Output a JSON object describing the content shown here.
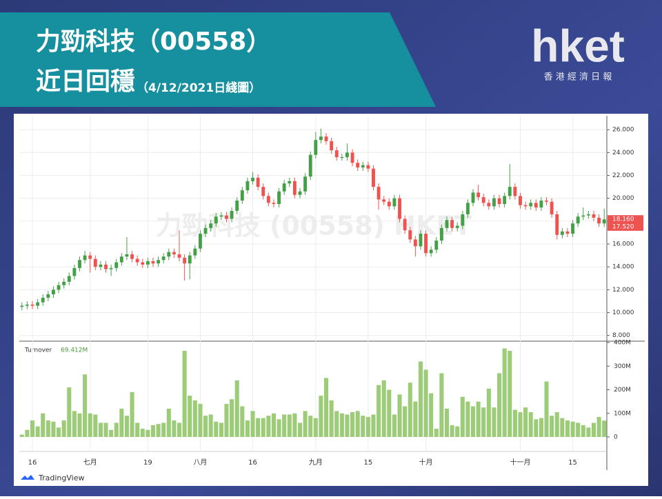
{
  "header": {
    "title_line1": "力勁科技（00558）",
    "title_line2": "近日回穩",
    "date_note": "（4/12/2021日綫圖）",
    "logo": "hket",
    "logo_sub": "香 港 經 濟 日 報"
  },
  "chart_data": {
    "type": "candlestick",
    "watermark": "力勁科技 (00558) HKET",
    "attribution": "TradingView",
    "up_color": "#43a047",
    "down_color": "#ef5350",
    "categories": [
      null,
      null,
      "16",
      null,
      null,
      null,
      null,
      null,
      null,
      null,
      null,
      null,
      null,
      "七月",
      null,
      null,
      null,
      null,
      null,
      null,
      null,
      null,
      null,
      null,
      "19",
      null,
      null,
      null,
      null,
      null,
      null,
      null,
      null,
      null,
      "八月",
      null,
      null,
      null,
      null,
      null,
      null,
      null,
      null,
      null,
      "16",
      null,
      null,
      null,
      null,
      null,
      null,
      null,
      null,
      null,
      null,
      null,
      "九月",
      null,
      null,
      null,
      null,
      null,
      null,
      null,
      null,
      null,
      "15",
      null,
      null,
      null,
      null,
      null,
      null,
      null,
      null,
      null,
      null,
      "十月",
      null,
      null,
      null,
      null,
      null,
      null,
      null,
      null,
      null,
      null,
      null,
      null,
      null,
      null,
      null,
      null,
      null,
      "十一月",
      null,
      null,
      null,
      null,
      null,
      null,
      null,
      null,
      null,
      "15",
      null,
      null,
      null,
      null,
      null,
      null
    ],
    "open": [
      10.5,
      10.6,
      10.7,
      10.6,
      10.9,
      11.3,
      11.6,
      12.0,
      12.4,
      12.7,
      13.2,
      13.9,
      14.6,
      15.0,
      14.7,
      14.0,
      14.2,
      13.8,
      13.9,
      14.4,
      14.9,
      15.1,
      14.7,
      14.4,
      14.2,
      14.5,
      14.3,
      14.6,
      14.9,
      15.3,
      15.1,
      14.8,
      14.3,
      15.0,
      15.6,
      16.9,
      17.4,
      17.8,
      18.4,
      18.5,
      18.2,
      18.9,
      19.8,
      20.7,
      21.5,
      21.8,
      21.0,
      20.2,
      19.6,
      19.5,
      20.6,
      21.3,
      21.5,
      20.3,
      20.6,
      21.9,
      23.8,
      25.1,
      25.4,
      25.0,
      24.2,
      23.6,
      23.6,
      24.0,
      23.1,
      22.7,
      22.9,
      22.6,
      21.0,
      19.9,
      19.7,
      19.3,
      20.0,
      18.2,
      17.2,
      16.4,
      15.8,
      16.9,
      15.2,
      15.5,
      16.3,
      17.4,
      18.1,
      17.4,
      17.6,
      18.6,
      19.6,
      20.5,
      20.1,
      19.6,
      19.3,
      20.0,
      19.5,
      20.2,
      21.0,
      20.2,
      19.4,
      19.3,
      19.6,
      19.2,
      19.8,
      19.7,
      18.6,
      16.8,
      17.1,
      16.9,
      17.8,
      18.4,
      18.5,
      18.6,
      18.3,
      17.8
    ],
    "high": [
      10.9,
      11.0,
      11.0,
      11.2,
      11.6,
      11.9,
      12.3,
      12.7,
      13.0,
      13.5,
      14.2,
      14.9,
      15.4,
      15.3,
      15.0,
      14.5,
      14.5,
      14.2,
      14.7,
      15.2,
      16.6,
      15.4,
      15.0,
      14.7,
      14.8,
      14.8,
      14.9,
      15.2,
      15.6,
      15.6,
      17.2,
      15.1,
      15.3,
      15.9,
      17.2,
      17.7,
      18.1,
      18.7,
      18.8,
      18.8,
      19.2,
      20.1,
      21.0,
      21.8,
      22.3,
      22.1,
      21.3,
      20.5,
      19.9,
      20.9,
      21.6,
      21.8,
      21.8,
      20.9,
      22.2,
      24.1,
      25.8,
      26.1,
      25.7,
      25.3,
      24.5,
      23.9,
      24.8,
      24.3,
      23.4,
      23.2,
      23.2,
      22.9,
      21.3,
      20.2,
      20.0,
      20.3,
      20.3,
      18.5,
      17.5,
      16.7,
      17.2,
      17.2,
      15.8,
      16.6,
      17.7,
      18.4,
      18.4,
      17.9,
      18.9,
      19.9,
      20.8,
      21.2,
      20.4,
      19.9,
      20.3,
      20.3,
      20.5,
      23.0,
      21.3,
      20.5,
      19.7,
      19.9,
      19.9,
      20.1,
      20.1,
      20.0,
      18.9,
      17.4,
      17.4,
      18.1,
      18.7,
      19.2,
      18.9,
      18.9,
      18.6,
      19.1
    ],
    "low": [
      10.2,
      10.3,
      10.3,
      10.3,
      10.6,
      11.0,
      11.3,
      11.7,
      12.1,
      12.4,
      12.9,
      13.6,
      14.3,
      13.5,
      13.7,
      13.7,
      13.5,
      13.2,
      13.6,
      14.1,
      14.6,
      14.4,
      14.1,
      13.9,
      13.9,
      14.0,
      14.0,
      14.3,
      14.6,
      14.8,
      14.5,
      12.8,
      12.9,
      14.7,
      15.3,
      16.6,
      17.1,
      17.5,
      18.1,
      17.9,
      17.9,
      18.6,
      19.5,
      20.4,
      21.2,
      20.7,
      19.9,
      19.3,
      19.2,
      19.2,
      20.3,
      21.0,
      20.0,
      20.0,
      20.3,
      21.6,
      23.5,
      24.8,
      24.7,
      23.9,
      23.3,
      23.3,
      23.3,
      22.8,
      22.4,
      22.4,
      22.3,
      20.7,
      19.0,
      19.4,
      19.0,
      19.0,
      17.9,
      16.9,
      16.1,
      14.9,
      15.5,
      14.9,
      14.9,
      15.2,
      16.0,
      17.1,
      17.1,
      17.1,
      17.3,
      18.3,
      19.3,
      19.8,
      19.3,
      19.0,
      19.0,
      19.2,
      19.2,
      19.9,
      19.9,
      19.1,
      19.0,
      19.0,
      18.9,
      18.9,
      19.4,
      18.3,
      16.4,
      16.5,
      16.6,
      16.6,
      17.5,
      18.1,
      18.2,
      18.0,
      17.5,
      17.5
    ],
    "close": [
      10.6,
      10.7,
      10.6,
      10.9,
      11.3,
      11.6,
      12.0,
      12.4,
      12.7,
      13.2,
      13.9,
      14.6,
      15.0,
      14.7,
      14.0,
      14.2,
      13.8,
      13.9,
      14.4,
      14.9,
      15.1,
      14.7,
      14.4,
      14.2,
      14.5,
      14.3,
      14.6,
      14.9,
      15.3,
      15.1,
      14.8,
      14.3,
      15.0,
      15.6,
      16.9,
      17.4,
      17.8,
      18.4,
      18.5,
      18.2,
      18.9,
      19.8,
      20.7,
      21.5,
      21.8,
      21.0,
      20.2,
      19.6,
      19.5,
      20.6,
      21.3,
      21.5,
      20.3,
      20.6,
      21.9,
      23.8,
      25.1,
      25.4,
      25.0,
      24.2,
      23.6,
      23.6,
      24.0,
      23.1,
      22.7,
      22.9,
      22.6,
      21.0,
      19.9,
      19.7,
      19.3,
      20.0,
      18.2,
      17.2,
      16.4,
      15.8,
      16.9,
      15.2,
      15.5,
      16.3,
      17.4,
      18.1,
      17.4,
      17.6,
      18.6,
      19.6,
      20.5,
      20.1,
      19.6,
      19.3,
      20.0,
      19.5,
      20.2,
      21.0,
      20.2,
      19.4,
      19.3,
      19.6,
      19.2,
      19.8,
      19.7,
      18.6,
      16.8,
      17.1,
      16.9,
      17.8,
      18.4,
      18.5,
      18.6,
      18.3,
      17.8,
      18.16
    ],
    "ylim": [
      7.5,
      27.4
    ],
    "yticks": [
      {
        "value": 8,
        "label": "8.000"
      },
      {
        "value": 10,
        "label": "10.000"
      },
      {
        "value": 12,
        "label": "12.000"
      },
      {
        "value": 14,
        "label": "14.000"
      },
      {
        "value": 16,
        "label": "16.000"
      },
      {
        "value": 18,
        "label": "18.000"
      },
      {
        "value": 20,
        "label": "20.000"
      },
      {
        "value": 22,
        "label": "22.000"
      },
      {
        "value": 24,
        "label": "24.000"
      },
      {
        "value": 26,
        "label": "26.000"
      }
    ],
    "price_labels": [
      {
        "value": 18.16,
        "label": "18.160",
        "color": "#ef5350"
      },
      {
        "value": 17.52,
        "label": "17.520",
        "color": "#ef5350"
      }
    ],
    "grid": true,
    "volume": {
      "name": "Turnover",
      "color": "#9ccc78",
      "last": {
        "value": 69.412,
        "label": "69.412M"
      },
      "values": [
        10,
        30,
        70,
        45,
        100,
        70,
        65,
        40,
        70,
        210,
        110,
        100,
        265,
        100,
        95,
        60,
        60,
        30,
        60,
        120,
        90,
        190,
        60,
        35,
        30,
        50,
        55,
        60,
        120,
        70,
        60,
        365,
        175,
        155,
        140,
        90,
        95,
        65,
        60,
        140,
        160,
        240,
        130,
        70,
        110,
        80,
        80,
        90,
        100,
        75,
        95,
        95,
        100,
        60,
        110,
        90,
        80,
        175,
        250,
        155,
        110,
        100,
        95,
        105,
        110,
        90,
        85,
        95,
        220,
        240,
        200,
        95,
        180,
        130,
        230,
        150,
        320,
        285,
        185,
        35,
        270,
        120,
        50,
        45,
        170,
        150,
        130,
        150,
        125,
        205,
        125,
        270,
        375,
        365,
        115,
        105,
        125,
        105,
        75,
        80,
        235,
        90,
        105,
        80,
        70,
        65,
        60,
        50,
        40,
        60,
        85,
        69.412
      ],
      "y2lim": [
        0,
        400
      ],
      "y2ticks": [
        0,
        {
          "value": 100,
          "label": "100M"
        },
        {
          "value": 200,
          "label": "200M"
        },
        {
          "value": 300,
          "label": "300M"
        },
        {
          "value": 400,
          "label": "400M"
        }
      ]
    }
  }
}
